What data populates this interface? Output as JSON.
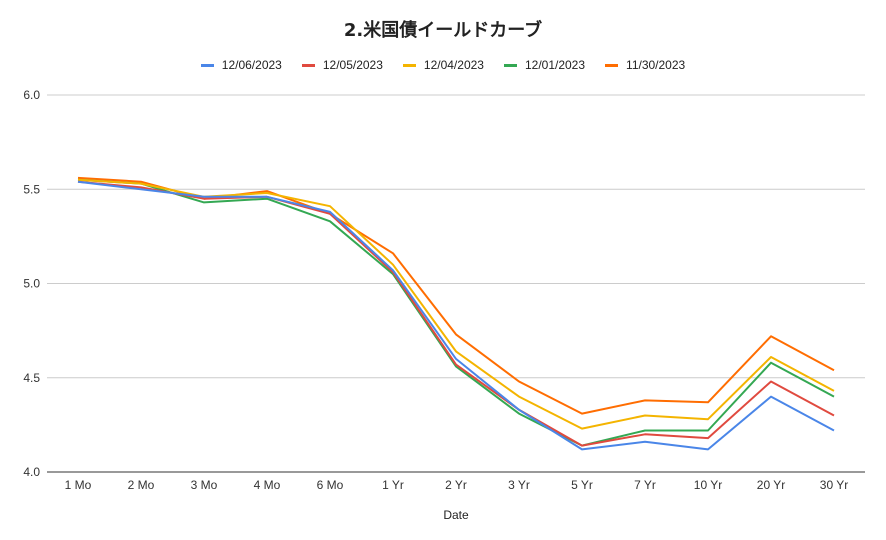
{
  "chart_data": {
    "type": "line",
    "title": "2.米国債イールドカーブ",
    "xlabel": "Date",
    "ylabel": "",
    "ylim": [
      4.0,
      6.0
    ],
    "yticks": [
      "4.0",
      "4.5",
      "5.0",
      "5.5",
      "6.0"
    ],
    "grid": true,
    "legend_position": "top",
    "categories": [
      "1 Mo",
      "2 Mo",
      "3 Mo",
      "4 Mo",
      "6 Mo",
      "1 Yr",
      "2 Yr",
      "3 Yr",
      "5 Yr",
      "7 Yr",
      "10 Yr",
      "20 Yr",
      "30 Yr"
    ],
    "series": [
      {
        "name": "12/06/2023",
        "color": "#4a86e8",
        "values": [
          5.54,
          5.5,
          5.46,
          5.46,
          5.38,
          5.07,
          4.6,
          4.33,
          4.12,
          4.16,
          4.12,
          4.4,
          4.22
        ]
      },
      {
        "name": "12/05/2023",
        "color": "#e04a3f",
        "values": [
          5.54,
          5.51,
          5.45,
          5.46,
          5.37,
          5.06,
          4.57,
          4.33,
          4.14,
          4.2,
          4.18,
          4.48,
          4.3
        ]
      },
      {
        "name": "12/04/2023",
        "color": "#f4b400",
        "values": [
          5.55,
          5.53,
          5.46,
          5.48,
          5.41,
          5.1,
          4.64,
          4.4,
          4.23,
          4.3,
          4.28,
          4.61,
          4.43
        ]
      },
      {
        "name": "12/01/2023",
        "color": "#34a853",
        "values": [
          5.55,
          5.53,
          5.43,
          5.45,
          5.33,
          5.05,
          4.56,
          4.31,
          4.14,
          4.22,
          4.22,
          4.58,
          4.4
        ]
      },
      {
        "name": "11/30/2023",
        "color": "#ff6d01",
        "values": [
          5.56,
          5.54,
          5.45,
          5.49,
          5.37,
          5.16,
          4.73,
          4.48,
          4.31,
          4.38,
          4.37,
          4.72,
          4.54
        ]
      }
    ]
  }
}
